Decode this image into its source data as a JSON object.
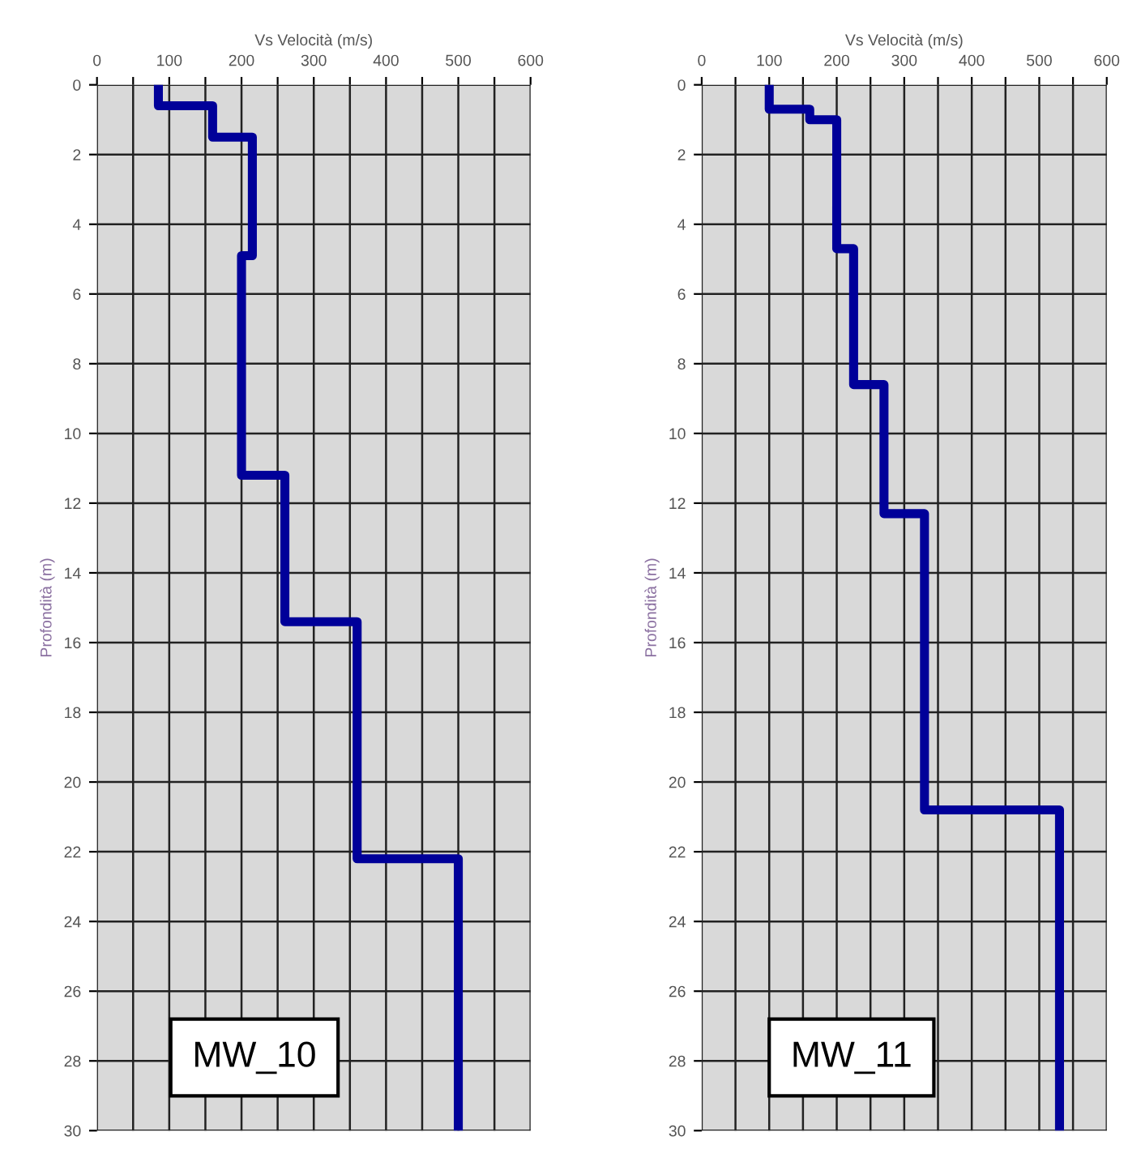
{
  "chart_data": [
    {
      "type": "line",
      "xlabel": "Vs Velocità (m/s)",
      "ylabel": "Profondità (m)",
      "annotations": [
        "MW_10"
      ],
      "series": [
        {
          "color": "#000099",
          "x": [
            85,
            85,
            160,
            160,
            215,
            215,
            200,
            200,
            260,
            260,
            360,
            360,
            500,
            500
          ],
          "values": [
            0,
            0.6,
            0.6,
            1.5,
            1.5,
            4.9,
            4.9,
            11.2,
            11.2,
            15.4,
            15.4,
            22.2,
            22.2,
            30
          ]
        }
      ],
      "xlim": [
        0,
        600
      ],
      "xticks": [
        0,
        {
          "value": 50,
          "label": null
        },
        100,
        {
          "value": 150,
          "label": null
        },
        200,
        {
          "value": 250,
          "label": null
        },
        300,
        {
          "value": 350,
          "label": null
        },
        400,
        {
          "value": 450,
          "label": null
        },
        500,
        {
          "value": 550,
          "label": null
        },
        600
      ],
      "ylim": [
        30,
        0
      ],
      "yticks": [
        0,
        2,
        4,
        6,
        8,
        10,
        12,
        14,
        16,
        18,
        20,
        22,
        24,
        26,
        28,
        30
      ],
      "grid": true,
      "marker": "none",
      "line_style": "solid"
    },
    {
      "type": "line",
      "xlabel": "Vs Velocità (m/s)",
      "ylabel": "Profondità (m)",
      "annotations": [
        "MW_11"
      ],
      "series": [
        {
          "color": "#000099",
          "x": [
            100,
            100,
            160,
            160,
            200,
            200,
            225,
            225,
            270,
            270,
            330,
            330,
            530,
            530
          ],
          "values": [
            0,
            0.7,
            0.7,
            1.0,
            1.0,
            4.7,
            4.7,
            8.6,
            8.6,
            12.3,
            12.3,
            20.8,
            20.8,
            30
          ]
        }
      ],
      "xlim": [
        0,
        600
      ],
      "xticks": [
        0,
        {
          "value": 50,
          "label": null
        },
        100,
        {
          "value": 150,
          "label": null
        },
        200,
        {
          "value": 250,
          "label": null
        },
        300,
        {
          "value": 350,
          "label": null
        },
        400,
        {
          "value": 450,
          "label": null
        },
        500,
        {
          "value": 550,
          "label": null
        },
        600
      ],
      "ylim": [
        30,
        0
      ],
      "yticks": [
        0,
        2,
        4,
        6,
        8,
        10,
        12,
        14,
        16,
        18,
        20,
        22,
        24,
        26,
        28,
        30
      ],
      "grid": true,
      "marker": "none",
      "line_style": "solid"
    }
  ]
}
